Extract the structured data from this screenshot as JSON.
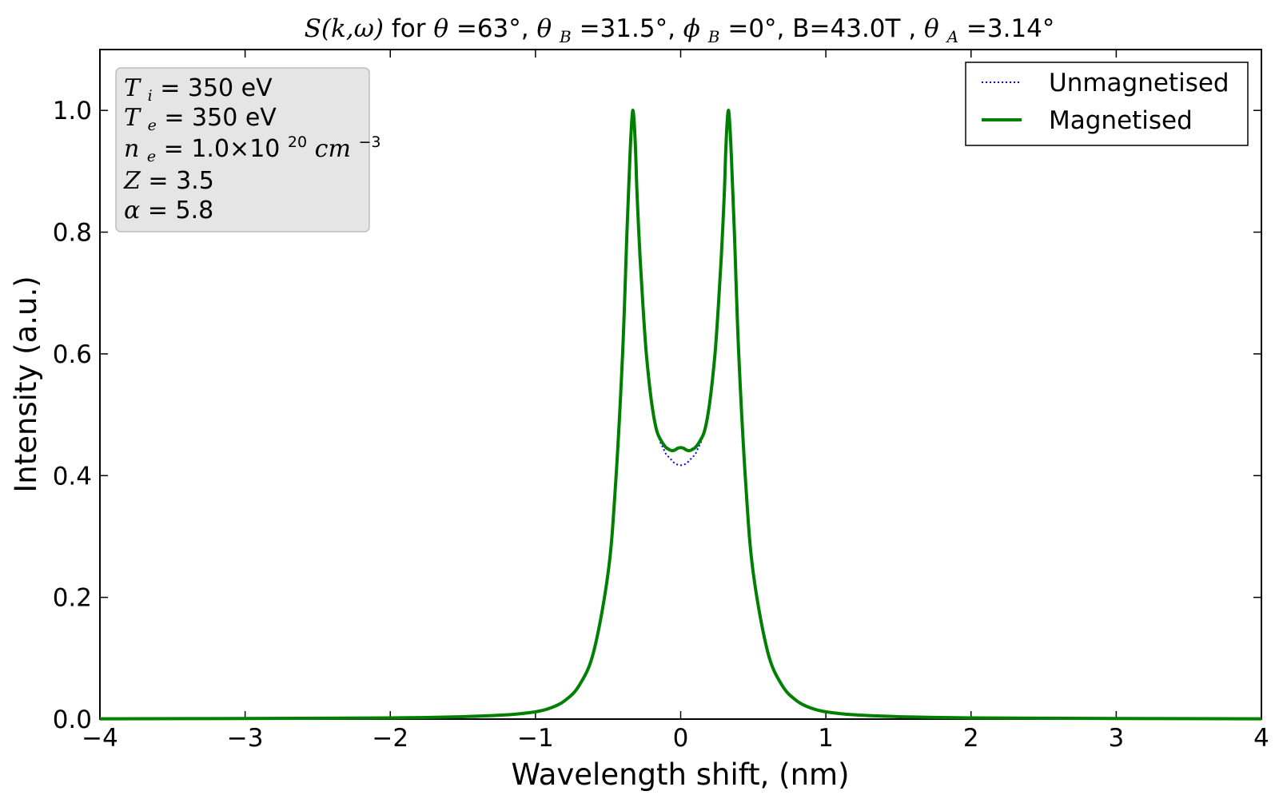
{
  "chart_data": {
    "type": "line",
    "title": {
      "prefix_math": "S(k,ω)",
      "for": " for ",
      "theta": "θ",
      "theta_val": "=63°, ",
      "thetaB": "θ",
      "thetaB_sub": "B",
      "thetaB_val": "=31.5°, ",
      "phiB": "ϕ",
      "phiB_sub": "B",
      "phiB_val": "=0°, B=43.0T , ",
      "thetaA": "θ",
      "thetaA_sub": "A",
      "thetaA_val": "=3.14°"
    },
    "xlabel": "Wavelength shift, (nm)",
    "ylabel": "Intensity (a.u.)",
    "xlim": [
      -4,
      4
    ],
    "ylim": [
      0,
      1.1
    ],
    "xticks": [
      "−4",
      "−3",
      "−2",
      "−1",
      "0",
      "1",
      "2",
      "3",
      "4"
    ],
    "yticks": [
      "0.0",
      "0.2",
      "0.4",
      "0.6",
      "0.8",
      "1.0"
    ],
    "legend": {
      "position": "top-right",
      "entries": [
        "Unmagnetised",
        "Magnetised"
      ]
    },
    "info_box": {
      "ti_sym": "T",
      "ti_sub": "i",
      "ti_val": " = 350 eV",
      "te_sym": "T",
      "te_sub": "e",
      "te_val": " = 350 eV",
      "ne_sym": "n",
      "ne_sub": "e",
      "ne_val": " = 1.0×10",
      "ne_exp": "20",
      "ne_unit": " cm",
      "ne_unit_exp": "−3",
      "z_sym": "Z",
      "z_val": " = 3.5",
      "alpha_sym": "α",
      "alpha_val": " = 5.8"
    },
    "series": [
      {
        "name": "Unmagnetised",
        "color": "#0000ff",
        "style": "dotted",
        "x": [
          -4,
          -3,
          -2,
          -1.5,
          -1.2,
          -1.0,
          -0.9,
          -0.8,
          -0.7,
          -0.6,
          -0.5,
          -0.45,
          -0.4,
          -0.37,
          -0.35,
          -0.34,
          -0.33,
          -0.32,
          -0.31,
          -0.3,
          -0.28,
          -0.26,
          -0.24,
          -0.22,
          -0.2,
          -0.18,
          -0.16,
          -0.14,
          -0.12,
          -0.1,
          -0.08,
          -0.06,
          -0.04,
          -0.02,
          0,
          0.02,
          0.04,
          0.06,
          0.08,
          0.1,
          0.12,
          0.14,
          0.16,
          0.18,
          0.2,
          0.22,
          0.24,
          0.26,
          0.28,
          0.3,
          0.31,
          0.32,
          0.33,
          0.34,
          0.35,
          0.37,
          0.4,
          0.45,
          0.5,
          0.6,
          0.7,
          0.8,
          0.9,
          1.0,
          1.2,
          1.5,
          2,
          3,
          4
        ],
        "y": [
          0.0005,
          0.001,
          0.002,
          0.004,
          0.007,
          0.012,
          0.018,
          0.03,
          0.055,
          0.11,
          0.24,
          0.38,
          0.6,
          0.8,
          0.92,
          0.97,
          1.0,
          0.98,
          0.93,
          0.86,
          0.76,
          0.68,
          0.61,
          0.56,
          0.52,
          0.49,
          0.47,
          0.455,
          0.445,
          0.435,
          0.43,
          0.425,
          0.42,
          0.418,
          0.417,
          0.418,
          0.42,
          0.425,
          0.43,
          0.435,
          0.445,
          0.455,
          0.47,
          0.49,
          0.52,
          0.56,
          0.61,
          0.68,
          0.76,
          0.86,
          0.93,
          0.98,
          1.0,
          0.97,
          0.92,
          0.8,
          0.6,
          0.38,
          0.24,
          0.11,
          0.055,
          0.03,
          0.018,
          0.012,
          0.007,
          0.004,
          0.002,
          0.001,
          0.0005
        ]
      },
      {
        "name": "Magnetised",
        "color": "#008000",
        "style": "solid",
        "x": [
          -4,
          -3,
          -2,
          -1.5,
          -1.2,
          -1.0,
          -0.9,
          -0.8,
          -0.7,
          -0.6,
          -0.5,
          -0.45,
          -0.4,
          -0.37,
          -0.35,
          -0.34,
          -0.33,
          -0.32,
          -0.31,
          -0.3,
          -0.28,
          -0.26,
          -0.24,
          -0.22,
          -0.2,
          -0.18,
          -0.16,
          -0.14,
          -0.12,
          -0.1,
          -0.08,
          -0.06,
          -0.04,
          -0.02,
          0,
          0.02,
          0.04,
          0.06,
          0.08,
          0.1,
          0.12,
          0.14,
          0.16,
          0.18,
          0.2,
          0.22,
          0.24,
          0.26,
          0.28,
          0.3,
          0.31,
          0.32,
          0.33,
          0.34,
          0.35,
          0.37,
          0.4,
          0.45,
          0.5,
          0.6,
          0.7,
          0.8,
          0.9,
          1.0,
          1.2,
          1.5,
          2,
          3,
          4
        ],
        "y": [
          0.0005,
          0.001,
          0.002,
          0.004,
          0.007,
          0.012,
          0.018,
          0.03,
          0.055,
          0.11,
          0.24,
          0.38,
          0.6,
          0.8,
          0.92,
          0.97,
          1.0,
          0.98,
          0.93,
          0.86,
          0.76,
          0.68,
          0.61,
          0.56,
          0.52,
          0.49,
          0.47,
          0.46,
          0.452,
          0.446,
          0.443,
          0.441,
          0.442,
          0.445,
          0.446,
          0.445,
          0.442,
          0.441,
          0.443,
          0.446,
          0.452,
          0.46,
          0.47,
          0.49,
          0.52,
          0.56,
          0.61,
          0.68,
          0.76,
          0.86,
          0.93,
          0.98,
          1.0,
          0.97,
          0.92,
          0.8,
          0.6,
          0.38,
          0.24,
          0.11,
          0.055,
          0.03,
          0.018,
          0.012,
          0.007,
          0.004,
          0.002,
          0.001,
          0.0005
        ]
      }
    ]
  }
}
